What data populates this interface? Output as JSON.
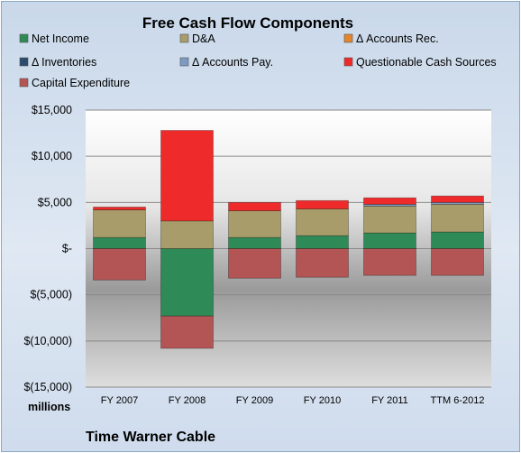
{
  "chart_data": {
    "type": "bar",
    "stacked": true,
    "title": "Free Cash Flow Components",
    "categories": [
      "FY 2007",
      "FY 2008",
      "FY 2009",
      "FY 2010",
      "FY 2011",
      "TTM 6-2012"
    ],
    "ylim": [
      -15000,
      15000
    ],
    "yticks": [
      15000,
      10000,
      5000,
      0,
      -5000,
      -10000,
      -15000
    ],
    "ytick_labels": [
      "$15,000",
      "$10,000",
      "$5,000",
      "$-",
      "$(5,000)",
      "$(10,000)",
      "$(15,000)"
    ],
    "unit_label": "millions",
    "footer": "Time Warner Cable",
    "grid": true,
    "legend_position": "top",
    "series": [
      {
        "name": "Net Income",
        "color": "#2e8b57",
        "values": [
          1200,
          -7300,
          1200,
          1400,
          1700,
          1800
        ]
      },
      {
        "name": "D&A",
        "color": "#a89c6a",
        "values": [
          3000,
          3000,
          2900,
          2900,
          2900,
          3000
        ]
      },
      {
        "name": "Δ Accounts Rec.",
        "color": "#e3852d",
        "values": [
          0,
          0,
          0,
          0,
          0,
          0
        ]
      },
      {
        "name": "Δ Inventories",
        "color": "#2c4b6e",
        "values": [
          0,
          0,
          0,
          0,
          0,
          0
        ]
      },
      {
        "name": "Δ Accounts Pay.",
        "color": "#7d9ac0",
        "values": [
          0,
          0,
          0,
          0,
          200,
          200
        ]
      },
      {
        "name": "Questionable Cash Sources",
        "color": "#ee2a2a",
        "values": [
          300,
          9800,
          900,
          900,
          700,
          700
        ]
      },
      {
        "name": "Capital Expenditure",
        "color": "#b35555",
        "values": [
          -3400,
          -3500,
          -3200,
          -3100,
          -2900,
          -2900
        ]
      }
    ]
  }
}
